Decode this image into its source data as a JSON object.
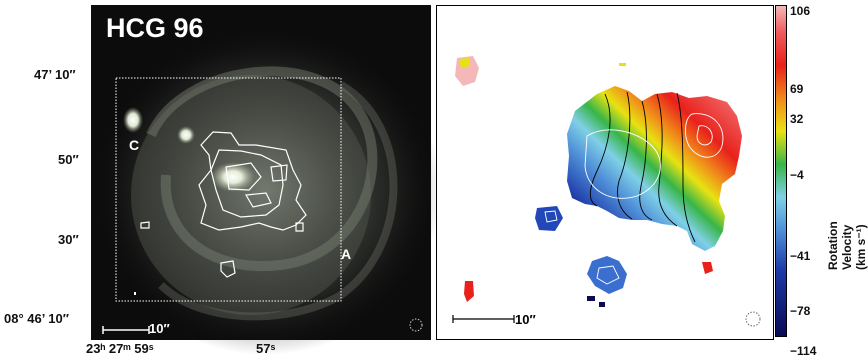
{
  "left_panel": {
    "title": "HCG 96",
    "label_c": "C",
    "label_a": "A",
    "scale_bar": "10″",
    "dec_ticks": [
      "47’ 10″",
      "50″",
      "30″",
      "08° 46’ 10″"
    ],
    "ra_ticks": [
      "23ʰ 27ᵐ 59ˢ",
      "57ˢ"
    ]
  },
  "right_panel": {
    "scale_bar": "10″",
    "colorbar": {
      "label": "Rotation Velocity (km s⁻¹)",
      "ticks": [
        "106",
        "69",
        "32",
        "−4",
        "−41",
        "−78",
        "−114"
      ]
    }
  },
  "colors": {
    "optical_bg": "#0c0c0c",
    "contour": "#ffffff",
    "cbar_top": "#f2a6a6",
    "cbar_red": "#e8211b",
    "cbar_yellow": "#f2e400",
    "cbar_green": "#33b533",
    "cbar_cyan": "#6fd3e8",
    "cbar_blue": "#2247b8",
    "cbar_bottom": "#0a0a55"
  }
}
